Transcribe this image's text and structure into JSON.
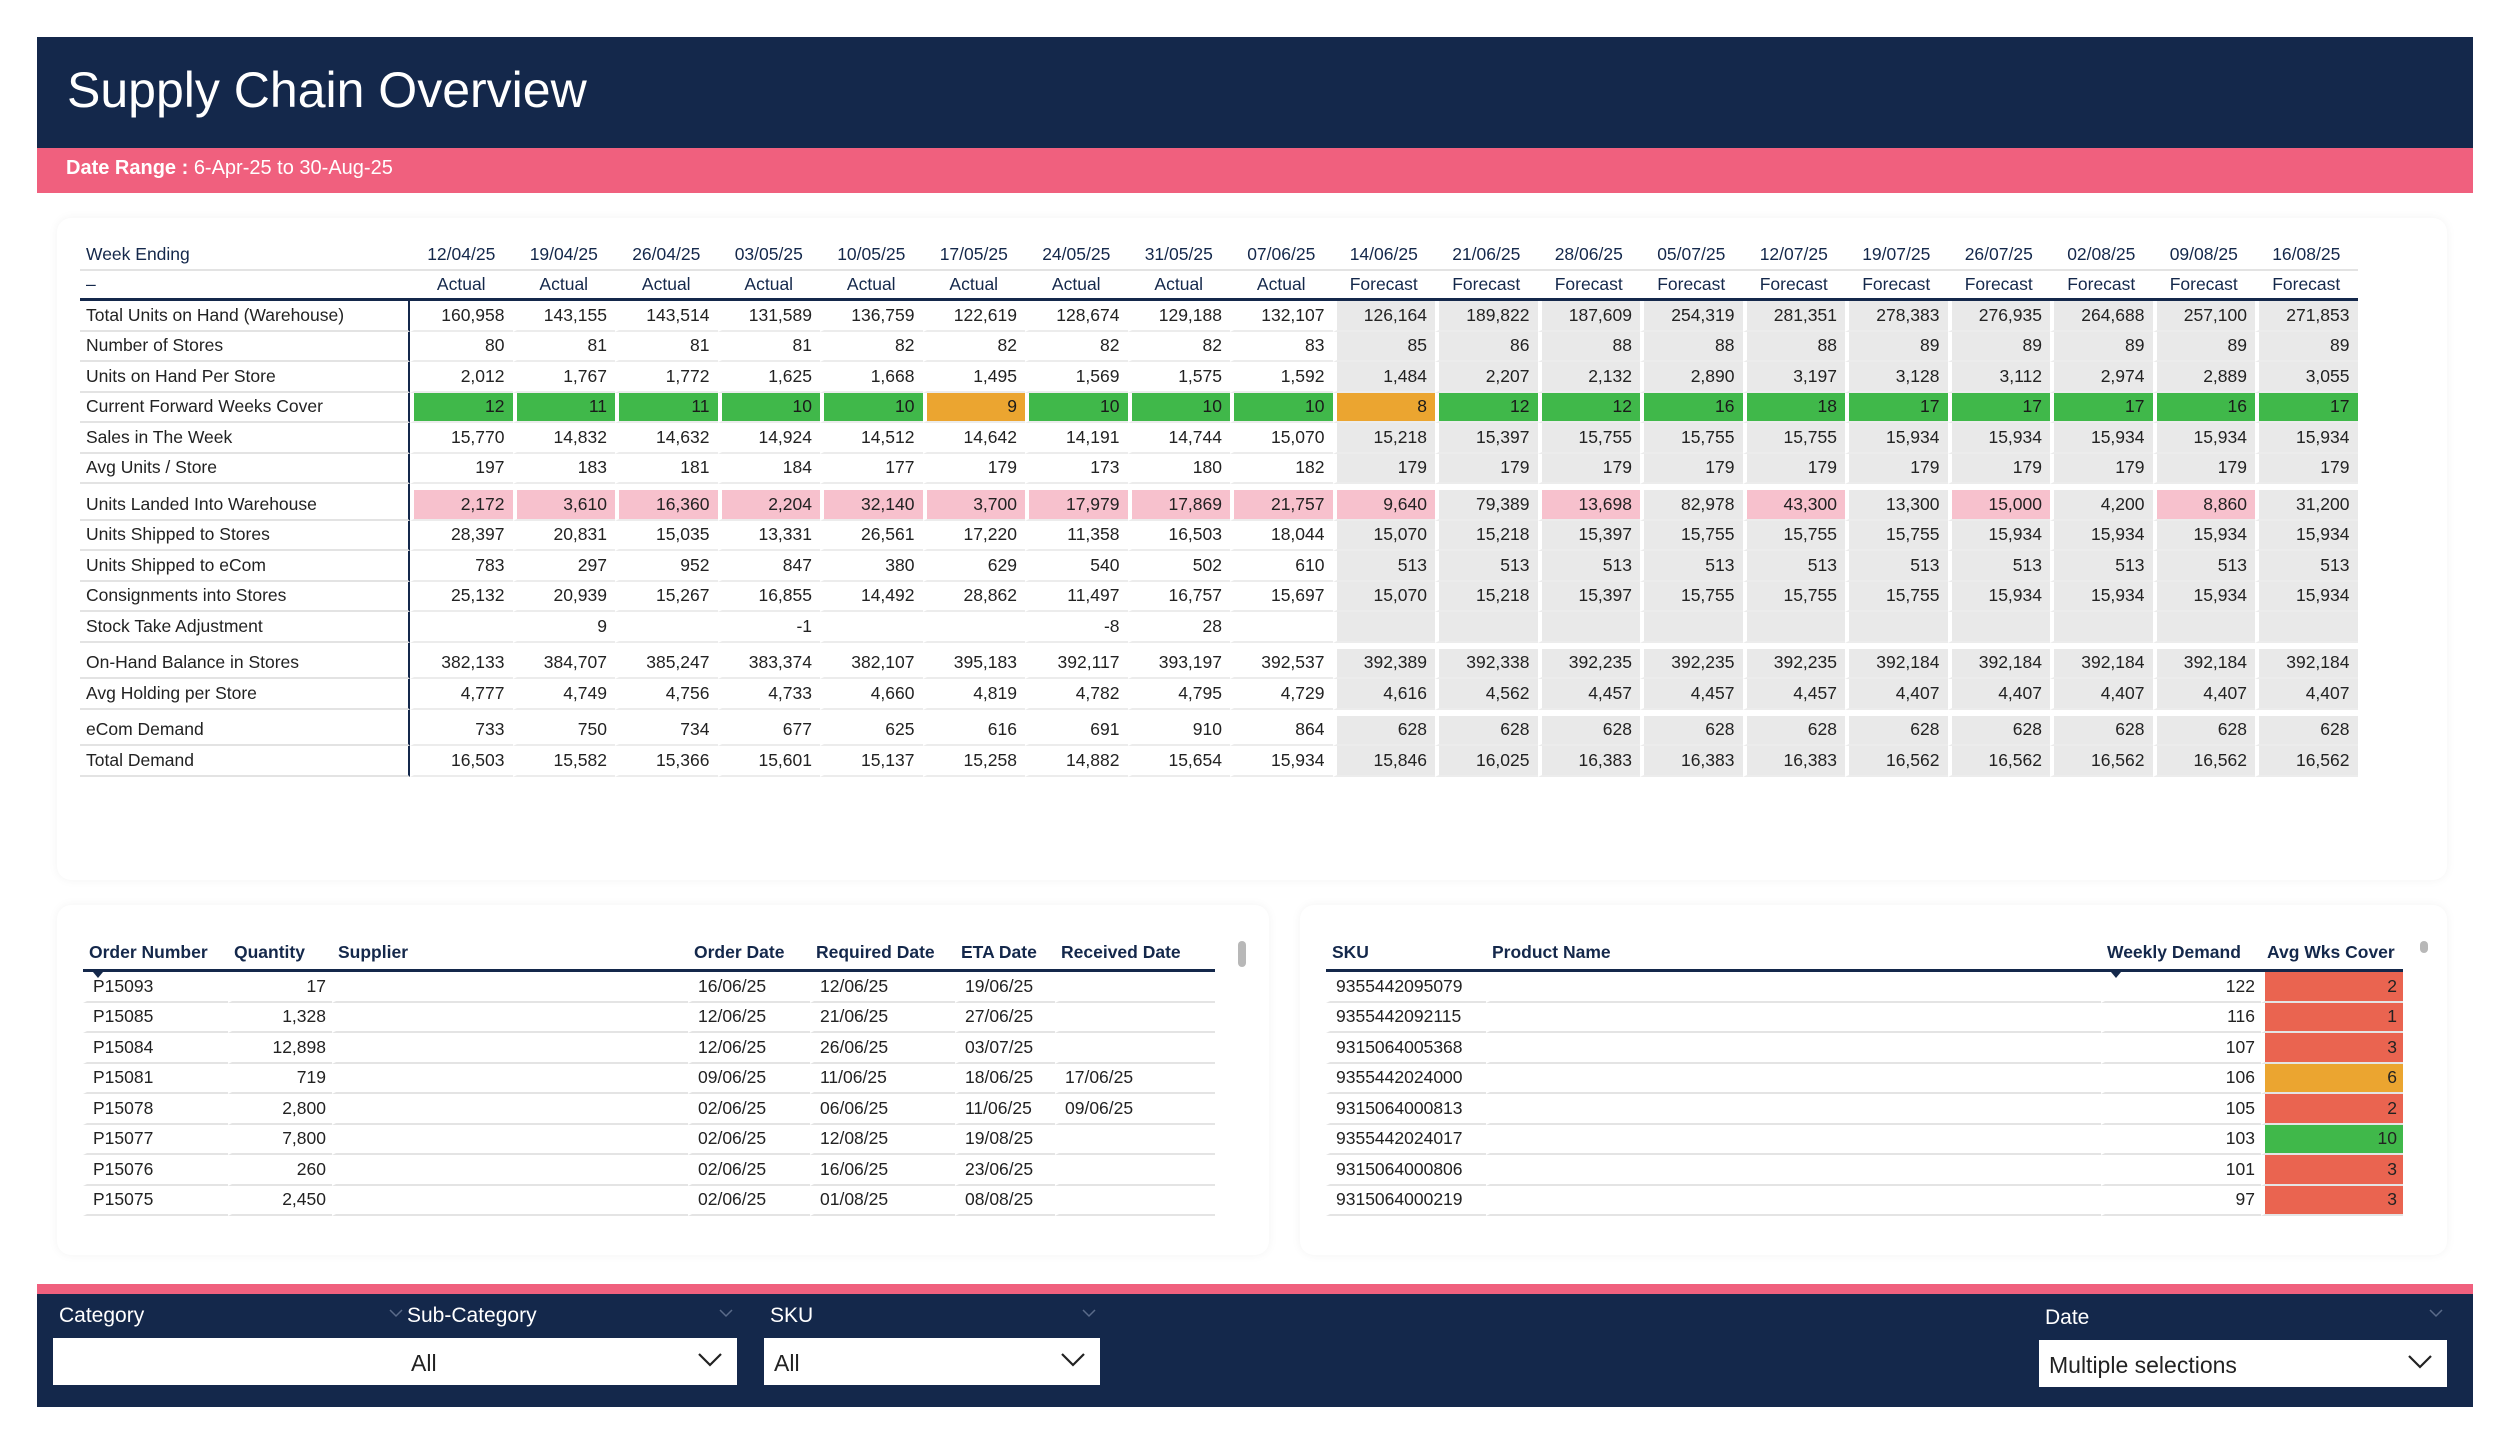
{
  "header": {
    "title": "Supply Chain Overview"
  },
  "date_range": {
    "label": "Date Range :",
    "value": "6-Apr-25 to 30-Aug-25"
  },
  "pivot": {
    "header_label": "Week Ending",
    "subheader_label": "–",
    "weeks": [
      {
        "date": "12/04/25",
        "type": "Actual"
      },
      {
        "date": "19/04/25",
        "type": "Actual"
      },
      {
        "date": "26/04/25",
        "type": "Actual"
      },
      {
        "date": "03/05/25",
        "type": "Actual"
      },
      {
        "date": "10/05/25",
        "type": "Actual"
      },
      {
        "date": "17/05/25",
        "type": "Actual"
      },
      {
        "date": "24/05/25",
        "type": "Actual"
      },
      {
        "date": "31/05/25",
        "type": "Actual"
      },
      {
        "date": "07/06/25",
        "type": "Actual"
      },
      {
        "date": "14/06/25",
        "type": "Forecast"
      },
      {
        "date": "21/06/25",
        "type": "Forecast"
      },
      {
        "date": "28/06/25",
        "type": "Forecast"
      },
      {
        "date": "05/07/25",
        "type": "Forecast"
      },
      {
        "date": "12/07/25",
        "type": "Forecast"
      },
      {
        "date": "19/07/25",
        "type": "Forecast"
      },
      {
        "date": "26/07/25",
        "type": "Forecast"
      },
      {
        "date": "02/08/25",
        "type": "Forecast"
      },
      {
        "date": "09/08/25",
        "type": "Forecast"
      },
      {
        "date": "16/08/25",
        "type": "Forecast"
      }
    ],
    "rows": [
      {
        "label": "Total Units on Hand (Warehouse)",
        "style": "plain",
        "values": [
          "160,958",
          "143,155",
          "143,514",
          "131,589",
          "136,759",
          "122,619",
          "128,674",
          "129,188",
          "132,107",
          "126,164",
          "189,822",
          "187,609",
          "254,319",
          "281,351",
          "278,383",
          "276,935",
          "264,688",
          "257,100",
          "271,853"
        ]
      },
      {
        "label": "Number of Stores",
        "style": "plain",
        "values": [
          "80",
          "81",
          "81",
          "81",
          "82",
          "82",
          "82",
          "82",
          "83",
          "85",
          "86",
          "88",
          "88",
          "88",
          "89",
          "89",
          "89",
          "89",
          "89"
        ]
      },
      {
        "label": "Units on Hand Per Store",
        "style": "plain",
        "values": [
          "2,012",
          "1,767",
          "1,772",
          "1,625",
          "1,668",
          "1,495",
          "1,569",
          "1,575",
          "1,592",
          "1,484",
          "2,207",
          "2,132",
          "2,890",
          "3,197",
          "3,128",
          "3,112",
          "2,974",
          "2,889",
          "3,055"
        ]
      },
      {
        "label": "Current Forward Weeks Cover",
        "style": "cover",
        "values": [
          "12",
          "11",
          "11",
          "10",
          "10",
          "9",
          "10",
          "10",
          "10",
          "8",
          "12",
          "12",
          "16",
          "18",
          "17",
          "17",
          "17",
          "16",
          "17"
        ],
        "status": [
          "green",
          "green",
          "green",
          "green",
          "green",
          "amber",
          "green",
          "green",
          "green",
          "amber",
          "green",
          "green",
          "green",
          "green",
          "green",
          "green",
          "green",
          "green",
          "green"
        ]
      },
      {
        "label": "Sales in The Week",
        "style": "plain",
        "values": [
          "15,770",
          "14,832",
          "14,632",
          "14,924",
          "14,512",
          "14,642",
          "14,191",
          "14,744",
          "15,070",
          "15,218",
          "15,397",
          "15,755",
          "15,755",
          "15,755",
          "15,934",
          "15,934",
          "15,934",
          "15,934",
          "15,934"
        ]
      },
      {
        "label": "Avg Units / Store",
        "style": "plain",
        "values": [
          "197",
          "183",
          "181",
          "184",
          "177",
          "179",
          "173",
          "180",
          "182",
          "179",
          "179",
          "179",
          "179",
          "179",
          "179",
          "179",
          "179",
          "179",
          "179"
        ],
        "gap_after": true
      },
      {
        "label": "Units Landed Into Warehouse",
        "style": "pink",
        "values": [
          "2,172",
          "3,610",
          "16,360",
          "2,204",
          "32,140",
          "3,700",
          "17,979",
          "17,869",
          "21,757",
          "9,640",
          "79,389",
          "13,698",
          "82,978",
          "43,300",
          "13,300",
          "15,000",
          "4,200",
          "8,860",
          "31,200"
        ]
      },
      {
        "label": "Units Shipped to Stores",
        "style": "plain",
        "values": [
          "28,397",
          "20,831",
          "15,035",
          "13,331",
          "26,561",
          "17,220",
          "11,358",
          "16,503",
          "18,044",
          "15,070",
          "15,218",
          "15,397",
          "15,755",
          "15,755",
          "15,755",
          "15,934",
          "15,934",
          "15,934",
          "15,934"
        ]
      },
      {
        "label": "Units Shipped to eCom",
        "style": "plain",
        "values": [
          "783",
          "297",
          "952",
          "847",
          "380",
          "629",
          "540",
          "502",
          "610",
          "513",
          "513",
          "513",
          "513",
          "513",
          "513",
          "513",
          "513",
          "513",
          "513"
        ]
      },
      {
        "label": "Consignments into Stores",
        "style": "plain",
        "values": [
          "25,132",
          "20,939",
          "15,267",
          "16,855",
          "14,492",
          "28,862",
          "11,497",
          "16,757",
          "15,697",
          "15,070",
          "15,218",
          "15,397",
          "15,755",
          "15,755",
          "15,755",
          "15,934",
          "15,934",
          "15,934",
          "15,934"
        ]
      },
      {
        "label": "Stock Take Adjustment",
        "style": "plain",
        "values": [
          "",
          "9",
          "",
          "-1",
          "",
          "",
          "-8",
          "28",
          "",
          "",
          "",
          "",
          "",
          "",
          "",
          "",
          "",
          "",
          ""
        ],
        "gap_after": true
      },
      {
        "label": "On-Hand Balance in Stores",
        "style": "plain",
        "values": [
          "382,133",
          "384,707",
          "385,247",
          "383,374",
          "382,107",
          "395,183",
          "392,117",
          "393,197",
          "392,537",
          "392,389",
          "392,338",
          "392,235",
          "392,235",
          "392,235",
          "392,184",
          "392,184",
          "392,184",
          "392,184",
          "392,184"
        ]
      },
      {
        "label": "Avg Holding per Store",
        "style": "plain",
        "values": [
          "4,777",
          "4,749",
          "4,756",
          "4,733",
          "4,660",
          "4,819",
          "4,782",
          "4,795",
          "4,729",
          "4,616",
          "4,562",
          "4,457",
          "4,457",
          "4,457",
          "4,407",
          "4,407",
          "4,407",
          "4,407",
          "4,407"
        ],
        "gap_after": true
      },
      {
        "label": "eCom Demand",
        "style": "plain",
        "values": [
          "733",
          "750",
          "734",
          "677",
          "625",
          "616",
          "691",
          "910",
          "864",
          "628",
          "628",
          "628",
          "628",
          "628",
          "628",
          "628",
          "628",
          "628",
          "628"
        ]
      },
      {
        "label": "Total Demand",
        "style": "plain",
        "values": [
          "16,503",
          "15,582",
          "15,366",
          "15,601",
          "15,137",
          "15,258",
          "14,882",
          "15,654",
          "15,934",
          "15,846",
          "16,025",
          "16,383",
          "16,383",
          "16,383",
          "16,562",
          "16,562",
          "16,562",
          "16,562",
          "16,562"
        ]
      }
    ],
    "colors": {
      "green": "#40b84a",
      "amber": "#eba530",
      "pink": "#f7c1cd",
      "forecast_bg": "#e9e9e9"
    }
  },
  "orders": {
    "columns": [
      "Order Number",
      "Quantity",
      "Supplier",
      "Order Date",
      "Required Date",
      "ETA Date",
      "Received Date"
    ],
    "rows": [
      [
        "P15093",
        "17",
        "",
        "16/06/25",
        "12/06/25",
        "19/06/25",
        ""
      ],
      [
        "P15085",
        "1,328",
        "",
        "12/06/25",
        "21/06/25",
        "27/06/25",
        ""
      ],
      [
        "P15084",
        "12,898",
        "",
        "12/06/25",
        "26/06/25",
        "03/07/25",
        ""
      ],
      [
        "P15081",
        "719",
        "",
        "09/06/25",
        "11/06/25",
        "18/06/25",
        "17/06/25"
      ],
      [
        "P15078",
        "2,800",
        "",
        "02/06/25",
        "06/06/25",
        "11/06/25",
        "09/06/25"
      ],
      [
        "P15077",
        "7,800",
        "",
        "02/06/25",
        "12/08/25",
        "19/08/25",
        ""
      ],
      [
        "P15076",
        "260",
        "",
        "02/06/25",
        "16/06/25",
        "23/06/25",
        ""
      ],
      [
        "P15075",
        "2,450",
        "",
        "02/06/25",
        "01/08/25",
        "08/08/25",
        ""
      ]
    ]
  },
  "sku_table": {
    "columns": [
      "SKU",
      "Product Name",
      "Weekly Demand",
      "Avg Wks Cover"
    ],
    "rows": [
      {
        "sku": "9355442095079",
        "name": "",
        "demand": "122",
        "cover": "2",
        "status": "red"
      },
      {
        "sku": "9355442092115",
        "name": "",
        "demand": "116",
        "cover": "1",
        "status": "red"
      },
      {
        "sku": "9315064005368",
        "name": "",
        "demand": "107",
        "cover": "3",
        "status": "red"
      },
      {
        "sku": "9355442024000",
        "name": "",
        "demand": "106",
        "cover": "6",
        "status": "amber"
      },
      {
        "sku": "9315064000813",
        "name": "",
        "demand": "105",
        "cover": "2",
        "status": "red"
      },
      {
        "sku": "9355442024017",
        "name": "",
        "demand": "103",
        "cover": "10",
        "status": "green"
      },
      {
        "sku": "9315064000806",
        "name": "",
        "demand": "101",
        "cover": "3",
        "status": "red"
      },
      {
        "sku": "9315064000219",
        "name": "",
        "demand": "97",
        "cover": "3",
        "status": "red"
      }
    ],
    "colors": {
      "red": "#ea6450",
      "amber": "#eba530",
      "green": "#40b84a"
    }
  },
  "filters": {
    "category": {
      "label": "Category",
      "value": ""
    },
    "subcategory": {
      "label": "Sub-Category",
      "value": "All"
    },
    "sku": {
      "label": "SKU",
      "value": "All"
    },
    "date": {
      "label": "Date",
      "value": "Multiple selections"
    }
  },
  "icons": {
    "dropdown": "chevron-down-icon",
    "sort": "sort-desc-icon"
  },
  "brand_colors": {
    "navy": "#14284b",
    "accent_pink": "#f0607e"
  }
}
